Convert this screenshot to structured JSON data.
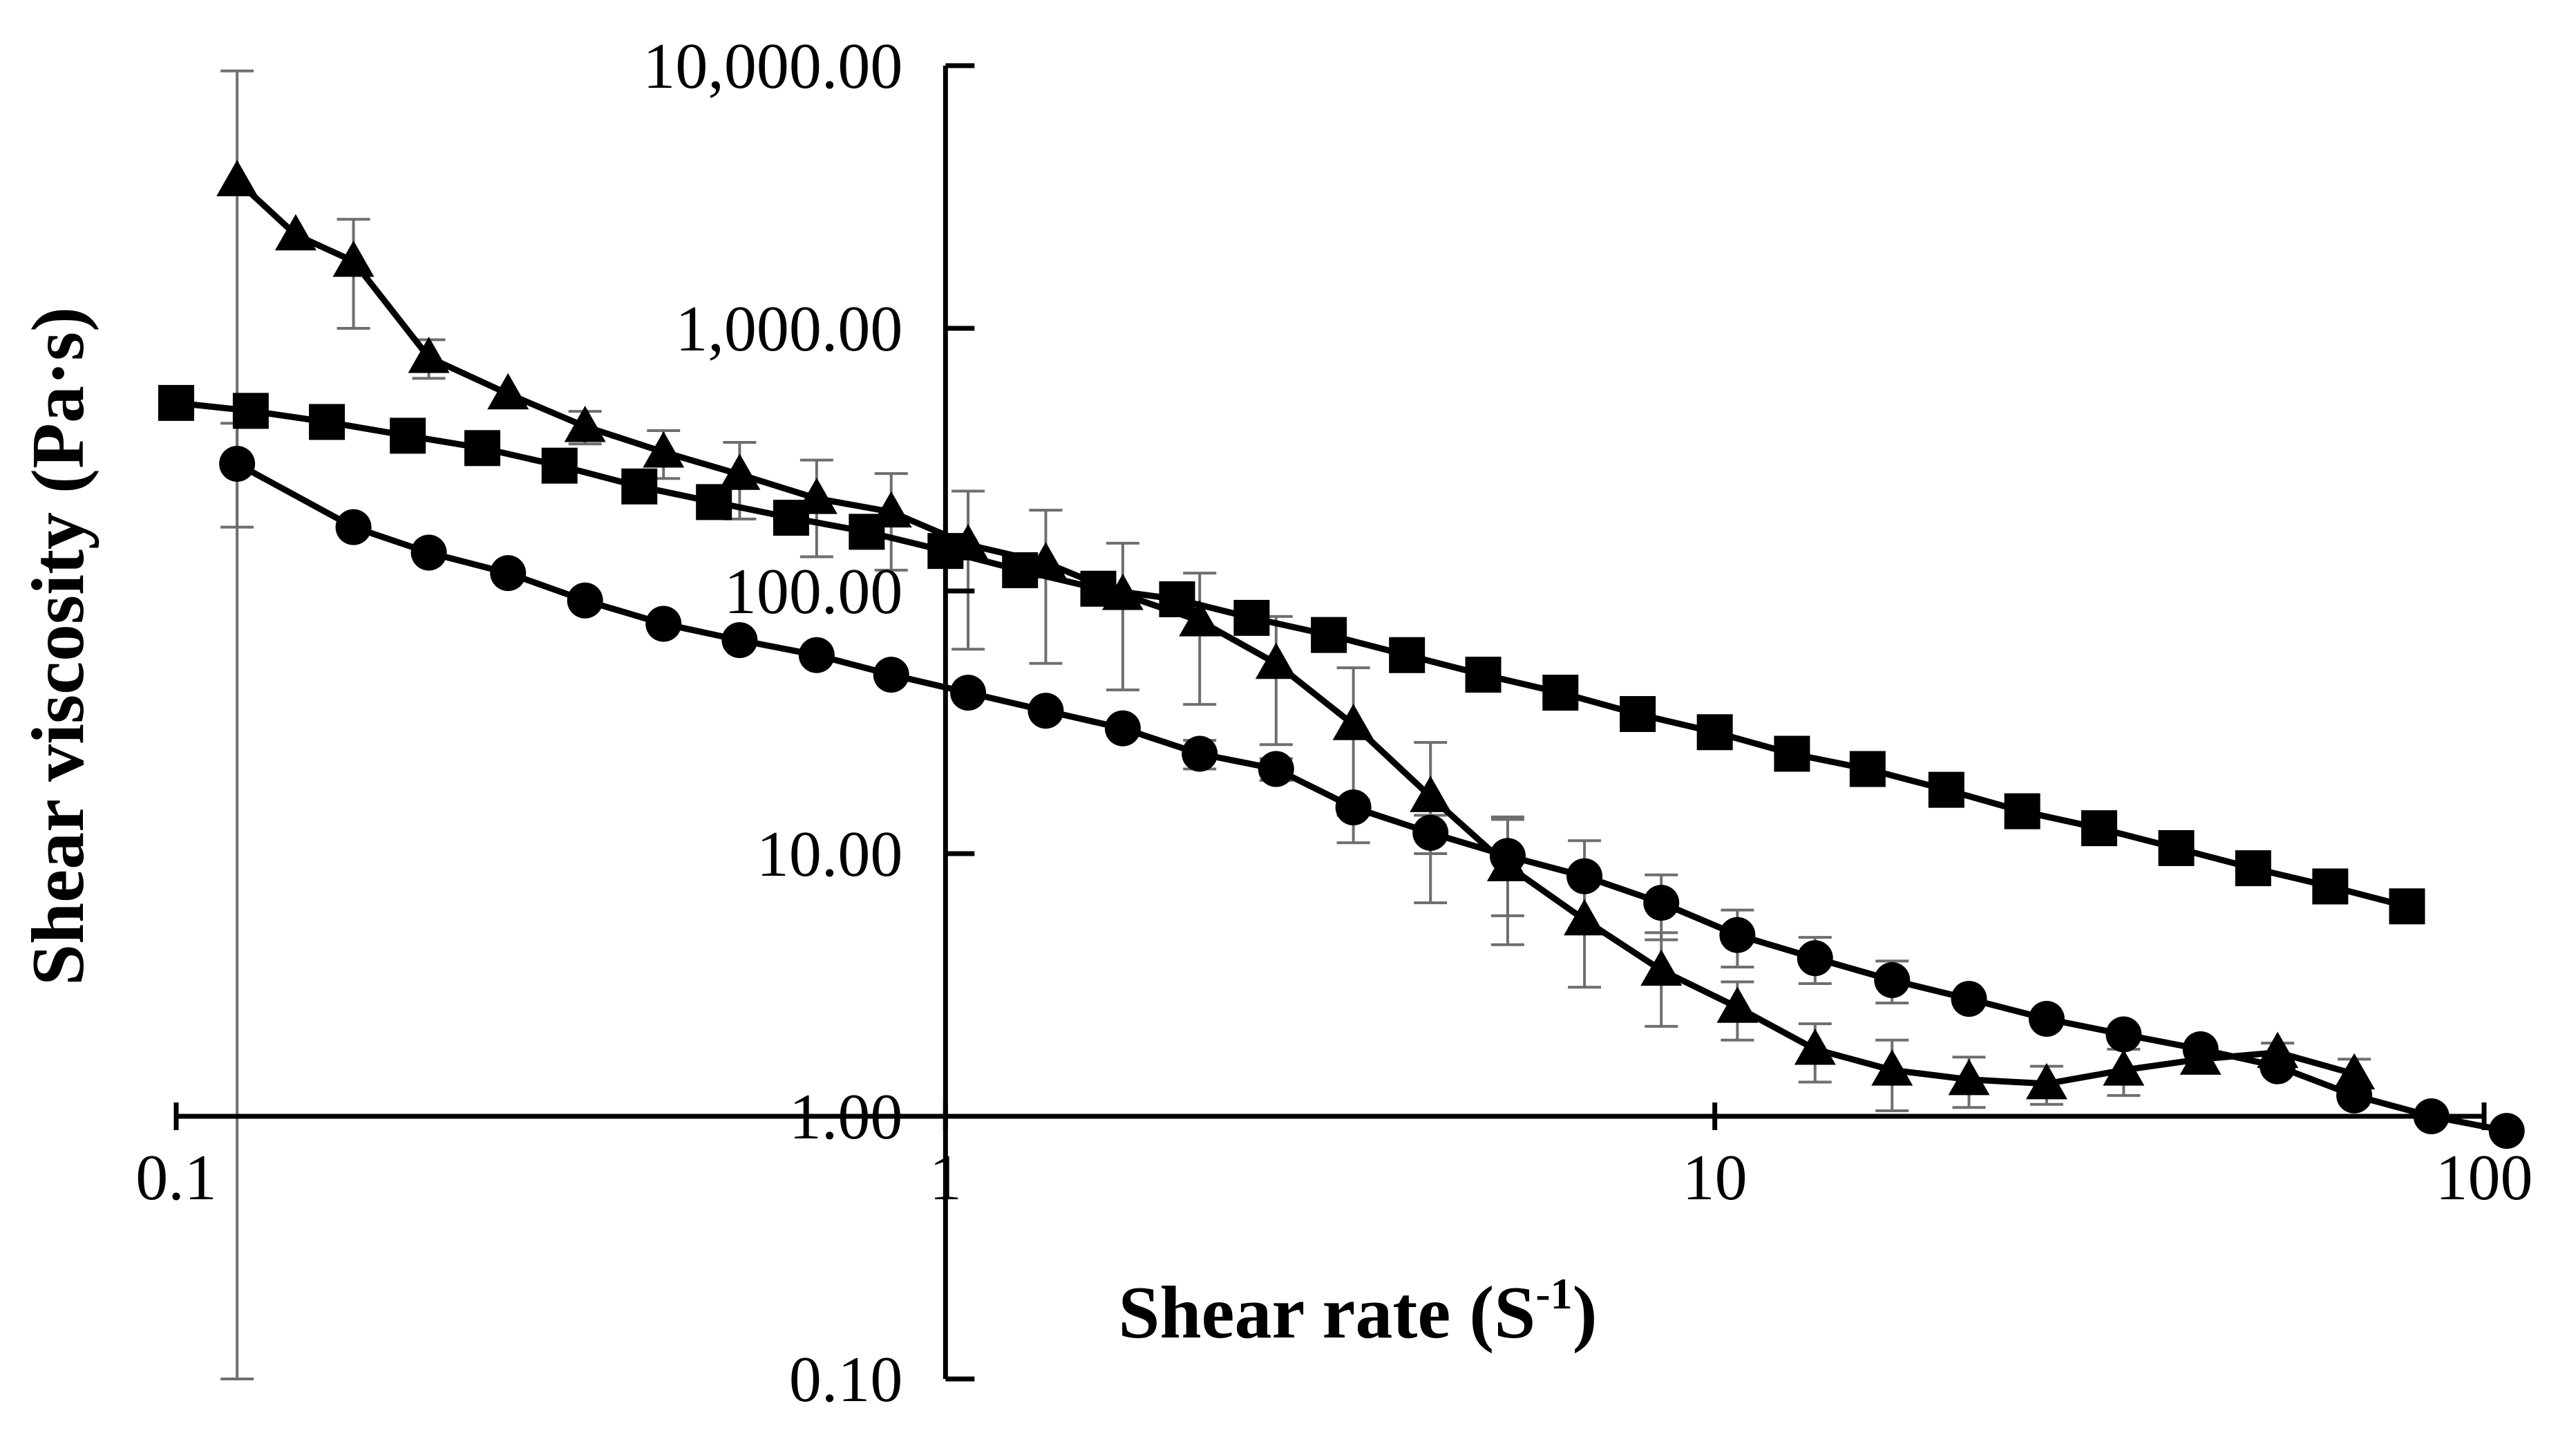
{
  "chart_data": {
    "type": "line",
    "title": "",
    "xlabel": "Shear rate (S",
    "xlabel_superscript": "-1",
    "xlabel_close": ")",
    "ylabel": "Shear viscosity (Pa·s)",
    "x_scale": "log",
    "y_scale": "log",
    "xlim": [
      0.1,
      100
    ],
    "ylim": [
      0.1,
      10000
    ],
    "x_ticks": [
      {
        "value": 0.1,
        "label": "0.1"
      },
      {
        "value": 1,
        "label": "1"
      },
      {
        "value": 10,
        "label": "10"
      },
      {
        "value": 100,
        "label": "100"
      }
    ],
    "y_ticks": [
      {
        "value": 10000,
        "label": "10,000.00"
      },
      {
        "value": 1000,
        "label": "1,000.00"
      },
      {
        "value": 100,
        "label": "100.00"
      },
      {
        "value": 10,
        "label": "10.00"
      },
      {
        "value": 1,
        "label": "1.00"
      },
      {
        "value": 0.1,
        "label": "0.10"
      }
    ],
    "x_axis_crosses_y_at": 1,
    "y_axis_crosses_x_at": 1,
    "grid": false,
    "legend": "none",
    "series": [
      {
        "name": "triangle-series",
        "marker": "triangle",
        "color": "#000000",
        "points": [
          {
            "x": 0.12,
            "y": 3650,
            "err": 5900
          },
          {
            "x": 0.143,
            "y": 2270
          },
          {
            "x": 0.17,
            "y": 1800,
            "err": 800
          },
          {
            "x": 0.213,
            "y": 775,
            "err": 130
          },
          {
            "x": 0.27,
            "y": 563
          },
          {
            "x": 0.34,
            "y": 423,
            "err": 60
          },
          {
            "x": 0.43,
            "y": 338,
            "err": 70
          },
          {
            "x": 0.54,
            "y": 278,
            "err": 90
          },
          {
            "x": 0.68,
            "y": 225,
            "err": 90
          },
          {
            "x": 0.85,
            "y": 200,
            "err": 80
          },
          {
            "x": 1.07,
            "y": 150,
            "err": 90
          },
          {
            "x": 1.35,
            "y": 128,
            "err": 75
          },
          {
            "x": 1.7,
            "y": 97,
            "err": 55
          },
          {
            "x": 2.14,
            "y": 77,
            "err": 40
          },
          {
            "x": 2.69,
            "y": 53,
            "err": 27
          },
          {
            "x": 3.39,
            "y": 31,
            "err": 20
          },
          {
            "x": 4.27,
            "y": 16.5,
            "err": 10
          },
          {
            "x": 5.38,
            "y": 9,
            "err": 4.5
          },
          {
            "x": 6.77,
            "y": 5.6,
            "err": 2.5
          },
          {
            "x": 8.52,
            "y": 3.6,
            "err": 1.4
          },
          {
            "x": 10.7,
            "y": 2.6,
            "err": 0.65
          },
          {
            "x": 13.5,
            "y": 1.8,
            "err": 0.45
          },
          {
            "x": 17.0,
            "y": 1.5,
            "err": 0.45
          },
          {
            "x": 21.4,
            "y": 1.38,
            "err": 0.3
          },
          {
            "x": 27.0,
            "y": 1.33,
            "err": 0.22
          },
          {
            "x": 34.0,
            "y": 1.5,
            "err": 0.3
          },
          {
            "x": 42.8,
            "y": 1.65
          },
          {
            "x": 53.9,
            "y": 1.75,
            "err": 0.15
          },
          {
            "x": 67.8,
            "y": 1.45,
            "err": 0.2
          }
        ]
      },
      {
        "name": "square-series",
        "marker": "square",
        "color": "#000000",
        "points": [
          {
            "x": 0.1,
            "y": 520
          },
          {
            "x": 0.125,
            "y": 485
          },
          {
            "x": 0.157,
            "y": 440
          },
          {
            "x": 0.2,
            "y": 390
          },
          {
            "x": 0.25,
            "y": 350
          },
          {
            "x": 0.315,
            "y": 300
          },
          {
            "x": 0.4,
            "y": 250
          },
          {
            "x": 0.5,
            "y": 218
          },
          {
            "x": 0.63,
            "y": 190
          },
          {
            "x": 0.79,
            "y": 168
          },
          {
            "x": 1.0,
            "y": 142
          },
          {
            "x": 1.25,
            "y": 120
          },
          {
            "x": 1.58,
            "y": 102
          },
          {
            "x": 2.0,
            "y": 93
          },
          {
            "x": 2.5,
            "y": 79
          },
          {
            "x": 3.15,
            "y": 68
          },
          {
            "x": 3.98,
            "y": 57
          },
          {
            "x": 5.0,
            "y": 48
          },
          {
            "x": 6.3,
            "y": 41
          },
          {
            "x": 7.94,
            "y": 34
          },
          {
            "x": 10.0,
            "y": 29
          },
          {
            "x": 12.6,
            "y": 24
          },
          {
            "x": 15.8,
            "y": 21
          },
          {
            "x": 20.0,
            "y": 17.5
          },
          {
            "x": 25.1,
            "y": 14.5
          },
          {
            "x": 31.6,
            "y": 12.5
          },
          {
            "x": 39.8,
            "y": 10.5
          },
          {
            "x": 50.1,
            "y": 8.8
          },
          {
            "x": 63.1,
            "y": 7.5
          },
          {
            "x": 79.4,
            "y": 6.3
          }
        ]
      },
      {
        "name": "circle-series",
        "marker": "circle",
        "color": "#000000",
        "points": [
          {
            "x": 0.12,
            "y": 305,
            "err": 130
          },
          {
            "x": 0.17,
            "y": 175
          },
          {
            "x": 0.213,
            "y": 140
          },
          {
            "x": 0.27,
            "y": 117
          },
          {
            "x": 0.34,
            "y": 92
          },
          {
            "x": 0.43,
            "y": 75
          },
          {
            "x": 0.54,
            "y": 65
          },
          {
            "x": 0.68,
            "y": 57
          },
          {
            "x": 0.85,
            "y": 48
          },
          {
            "x": 1.07,
            "y": 41
          },
          {
            "x": 1.35,
            "y": 35
          },
          {
            "x": 1.7,
            "y": 30
          },
          {
            "x": 2.14,
            "y": 24,
            "err": 3
          },
          {
            "x": 2.69,
            "y": 21,
            "err": 2
          },
          {
            "x": 3.39,
            "y": 15,
            "err": 1
          },
          {
            "x": 4.27,
            "y": 12,
            "err": 2
          },
          {
            "x": 5.38,
            "y": 9.8,
            "err": 4
          },
          {
            "x": 6.77,
            "y": 8.2,
            "err": 3
          },
          {
            "x": 8.52,
            "y": 6.5,
            "err": 1.8
          },
          {
            "x": 10.7,
            "y": 4.9,
            "err": 1.2
          },
          {
            "x": 13.5,
            "y": 4.0,
            "err": 0.8
          },
          {
            "x": 17.0,
            "y": 3.3,
            "err": 0.6
          },
          {
            "x": 21.4,
            "y": 2.8
          },
          {
            "x": 27.0,
            "y": 2.35
          },
          {
            "x": 34.0,
            "y": 2.05
          },
          {
            "x": 42.8,
            "y": 1.8
          },
          {
            "x": 53.9,
            "y": 1.55
          },
          {
            "x": 67.8,
            "y": 1.2
          },
          {
            "x": 85.4,
            "y": 1.0
          },
          {
            "x": 107,
            "y": 0.88
          }
        ]
      }
    ]
  }
}
